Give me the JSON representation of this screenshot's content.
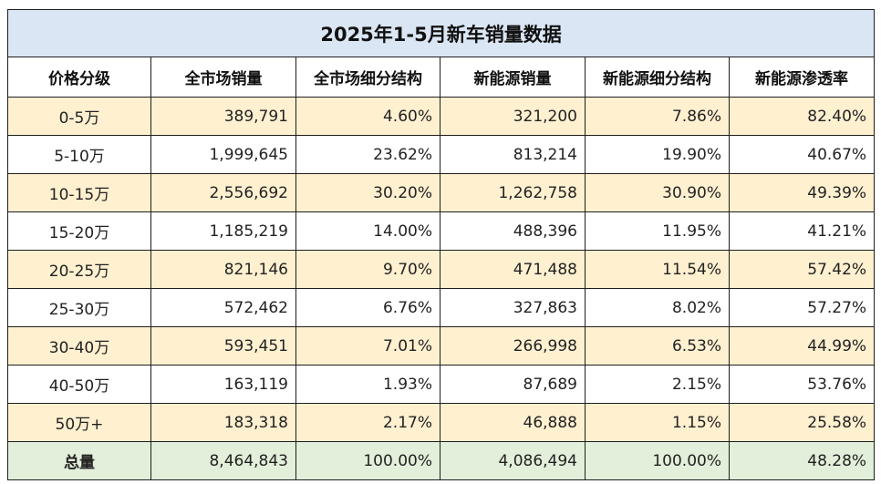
{
  "title": "2025年1-5月新车销量数据",
  "colors": {
    "title_bg": "#dbe6f4",
    "stripe_bg": "#fff0d0",
    "plain_bg": "#ffffff",
    "total_bg": "#e2efda"
  },
  "headers": [
    "价格分级",
    "全市场销量",
    "全市场细分结构",
    "新能源销量",
    "新能源细分结构",
    "新能源渗透率"
  ],
  "rows": [
    [
      "0-5万",
      "389,791",
      "4.60%",
      "321,200",
      "7.86%",
      "82.40%"
    ],
    [
      "5-10万",
      "1,999,645",
      "23.62%",
      "813,214",
      "19.90%",
      "40.67%"
    ],
    [
      "10-15万",
      "2,556,692",
      "30.20%",
      "1,262,758",
      "30.90%",
      "49.39%"
    ],
    [
      "15-20万",
      "1,185,219",
      "14.00%",
      "488,396",
      "11.95%",
      "41.21%"
    ],
    [
      "20-25万",
      "821,146",
      "9.70%",
      "471,488",
      "11.54%",
      "57.42%"
    ],
    [
      "25-30万",
      "572,462",
      "6.76%",
      "327,863",
      "8.02%",
      "57.27%"
    ],
    [
      "30-40万",
      "593,451",
      "7.01%",
      "266,998",
      "6.53%",
      "44.99%"
    ],
    [
      "40-50万",
      "163,119",
      "1.93%",
      "87,689",
      "2.15%",
      "53.76%"
    ],
    [
      "50万+",
      "183,318",
      "2.17%",
      "46,888",
      "1.15%",
      "25.58%"
    ]
  ],
  "total": [
    "总量",
    "8,464,843",
    "100.00%",
    "4,086,494",
    "100.00%",
    "48.28%"
  ]
}
